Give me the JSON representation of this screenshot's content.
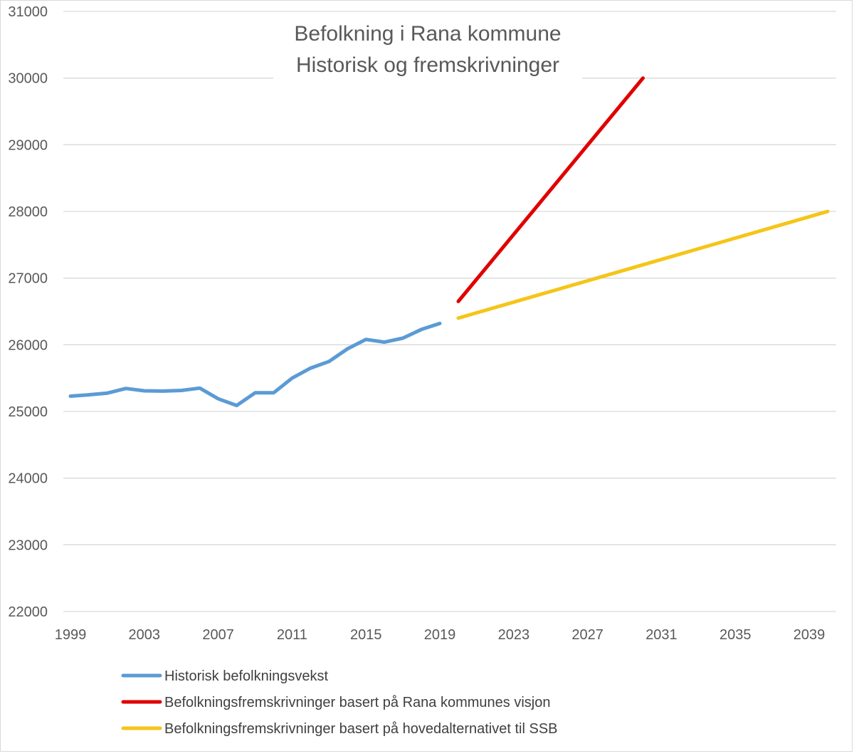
{
  "chart_data": {
    "type": "line",
    "title": [
      "Befolkning i Rana kommune",
      "Historisk og fremskrivninger"
    ],
    "xlabel": "",
    "ylabel": "",
    "xlim": [
      1999,
      2040
    ],
    "ylim": [
      22000,
      31000
    ],
    "grid": true,
    "legend_position": "bottom",
    "x_ticks": [
      "1999",
      "2003",
      "2007",
      "2011",
      "2015",
      "2019",
      "2023",
      "2027",
      "2031",
      "2035",
      "2039"
    ],
    "y_ticks": [
      "22000",
      "23000",
      "24000",
      "25000",
      "26000",
      "27000",
      "28000",
      "29000",
      "30000",
      "31000"
    ],
    "series": [
      {
        "name": "Historisk befolkningsvekst",
        "color": "#5b9bd5",
        "x": [
          1999,
          2000,
          2001,
          2002,
          2003,
          2004,
          2005,
          2006,
          2007,
          2008,
          2009,
          2010,
          2011,
          2012,
          2013,
          2014,
          2015,
          2016,
          2017,
          2018,
          2019
        ],
        "values": [
          25230,
          25250,
          25275,
          25345,
          25310,
          25305,
          25315,
          25350,
          25190,
          25090,
          25280,
          25280,
          25500,
          25650,
          25750,
          25940,
          26080,
          26040,
          26100,
          26230,
          26320
        ]
      },
      {
        "name": "Befolkningsfremskrivninger basert på Rana kommunes visjon",
        "color": "#e00000",
        "x": [
          2020,
          2030
        ],
        "values": [
          26650,
          30000
        ]
      },
      {
        "name": "Befolkningsfremskrivninger basert på hovedalternativet til SSB",
        "color": "#f5c518",
        "x": [
          2020,
          2040
        ],
        "values": [
          26400,
          28000
        ]
      }
    ]
  }
}
